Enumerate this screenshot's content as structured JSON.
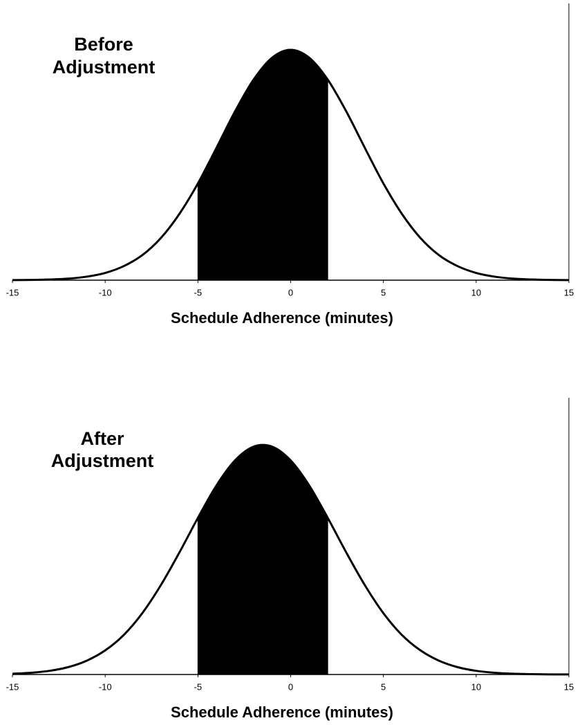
{
  "chart_data": [
    {
      "type": "area",
      "title": [
        "Before",
        "Adjustment"
      ],
      "x_label": "Schedule Adherence (minutes)",
      "x": [
        -15,
        -14,
        -13,
        -12,
        -11,
        -10,
        -9,
        -8,
        -7,
        -6,
        -5,
        -4,
        -3,
        -2,
        -1,
        0,
        1,
        2,
        3,
        4,
        5,
        6,
        7,
        8,
        9,
        10,
        11,
        12,
        13,
        14,
        15
      ],
      "values": [
        4e-05,
        0.0001,
        0.0003,
        0.0007,
        0.0016,
        0.0033,
        0.0064,
        0.0114,
        0.0192,
        0.0302,
        0.0441,
        0.0603,
        0.0769,
        0.0914,
        0.1014,
        0.105,
        0.1014,
        0.0914,
        0.0769,
        0.0603,
        0.0441,
        0.0302,
        0.0192,
        0.0114,
        0.0064,
        0.0033,
        0.0016,
        0.0007,
        0.0003,
        0.0001,
        4e-05
      ],
      "shade": [
        -5,
        2
      ],
      "color": "#000000",
      "xlim": [
        -15,
        15
      ],
      "xticks": [
        -15,
        -10,
        -5,
        0,
        5,
        10,
        15
      ],
      "ylim": [
        0,
        0.105
      ]
    },
    {
      "type": "area",
      "title": [
        "After",
        "Adjustment"
      ],
      "x_label": "Schedule Adherence (minutes)",
      "x": [
        -15,
        -14,
        -13,
        -12,
        -11,
        -10,
        -9,
        -8,
        -7,
        -6,
        -5,
        -4,
        -3,
        -2,
        -1,
        0,
        1,
        2,
        3,
        4,
        5,
        6,
        7,
        8,
        9,
        10,
        11,
        12,
        13,
        14,
        15
      ],
      "values": [
        0.00034,
        0.00076,
        0.0016,
        0.0032,
        0.006,
        0.0105,
        0.0172,
        0.0267,
        0.0389,
        0.0531,
        0.0682,
        0.0823,
        0.0932,
        0.0992,
        0.0992,
        0.0932,
        0.0823,
        0.0682,
        0.0531,
        0.0389,
        0.0267,
        0.0172,
        0.0105,
        0.006,
        0.0032,
        0.0016,
        0.00076,
        0.00034,
        0.00014,
        5e-05,
        2e-05
      ],
      "shade": [
        -5,
        2
      ],
      "color": "#000000",
      "xlim": [
        -15,
        15
      ],
      "xticks": [
        -15,
        -10,
        -5,
        0,
        5,
        10,
        15
      ],
      "ylim": [
        0,
        0.1
      ]
    }
  ]
}
